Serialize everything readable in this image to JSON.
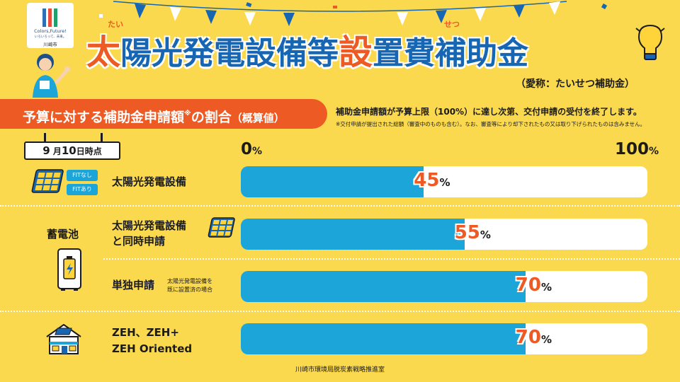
{
  "logo": {
    "line1": "Colors,Future!",
    "line2": "いろいろって、未来。",
    "city": "川崎市"
  },
  "title": {
    "part1": "太",
    "part2": "陽光発電設備等",
    "part3": "設",
    "part4": "置費補助金",
    "ruby1": "たい",
    "ruby2": "せつ"
  },
  "nickname": "（愛称：たいせつ補助金）",
  "banner": {
    "main": "予算に対する補助金申請額",
    "mark": "※",
    "tail": "の割合",
    "paren": "（概算値）"
  },
  "notes": {
    "main": "補助金申請額が予算上限（100%）に達し次第、交付申請の受付を終了します。",
    "sub": "※交付申請が提出された総額（審査中のものも含む）。なお、審査等により却下されたもの又は取り下げられたものは含みません。"
  },
  "date": {
    "month": "9",
    "month_unit": "月",
    "day": "10",
    "suffix": "日時点"
  },
  "scale": {
    "min": "0",
    "max": "100",
    "unit": "%"
  },
  "fit_tags": {
    "without": "FITなし",
    "with": "FITあり"
  },
  "battery_label": "蓄電池",
  "rows": [
    {
      "label": "太陽光発電設備",
      "value": 45,
      "value_text": "45",
      "unit": "%"
    },
    {
      "label_line1": "太陽光発電設備",
      "label_line2": "と同時申請",
      "value": 55,
      "value_text": "55",
      "unit": "%"
    },
    {
      "label": "単独申請",
      "note_line1": "太陽光発電設備を",
      "note_line2": "既に設置済の場合",
      "value": 70,
      "value_text": "70",
      "unit": "%"
    },
    {
      "label_line1": "ZEH、ZEH+",
      "label_line2": "ZEH Oriented",
      "value": 70,
      "value_text": "70",
      "unit": "%"
    }
  ],
  "footer": "川崎市環境局脱炭素戦略推進室",
  "colors": {
    "accent": "#ee5a24",
    "bar": "#1ba5d8",
    "title": "#1766b3",
    "background": "#fbd94e"
  }
}
